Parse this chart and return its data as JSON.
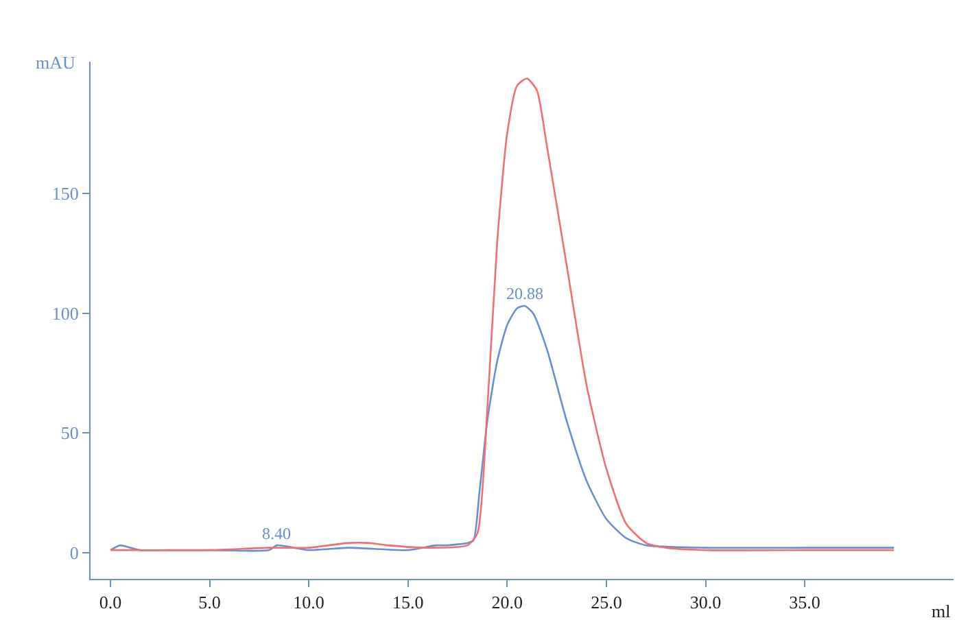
{
  "chart_data": {
    "type": "line",
    "xlabel": "ml",
    "ylabel": "mAU",
    "series": [
      {
        "color": "#6a8fd0",
        "x": [
          0,
          0.5,
          1,
          1.5,
          3,
          5,
          8,
          8.4,
          10,
          12,
          15,
          16.4,
          17,
          18,
          18.3,
          18.6,
          19,
          19.5,
          20,
          20.5,
          20.88,
          21.3,
          22,
          23,
          24,
          25,
          26,
          27,
          30,
          35,
          39.5
        ],
        "values": [
          1,
          3,
          2,
          1,
          1,
          1,
          1,
          3,
          1,
          2,
          1,
          3,
          3,
          4,
          5,
          25,
          55,
          80,
          95,
          102,
          103,
          100,
          85,
          55,
          30,
          14,
          6,
          3,
          2,
          2,
          2
        ]
      },
      {
        "color": "#f07070",
        "x": [
          0,
          1,
          5,
          8,
          10,
          12,
          13,
          14,
          16,
          18,
          18.5,
          19,
          19.5,
          20,
          20.5,
          21,
          21.5,
          22,
          23,
          24,
          25,
          26,
          27,
          28,
          30,
          35,
          39.5
        ],
        "values": [
          1,
          1,
          1,
          2,
          2,
          4,
          4,
          3,
          2,
          3,
          8,
          60,
          130,
          175,
          195,
          198,
          193,
          170,
          120,
          70,
          35,
          12,
          4,
          2,
          1,
          1,
          1
        ]
      }
    ],
    "annotations": [
      {
        "text": "20.88",
        "x": 20.88,
        "y": 103
      },
      {
        "text": "8.40",
        "x": 8.4,
        "y": 3
      }
    ],
    "xlim": [
      -1,
      42.5
    ],
    "ylim": [
      -11,
      205
    ],
    "xticks": [
      {
        "value": 0,
        "label": "0.0"
      },
      {
        "value": 5,
        "label": "5.0"
      },
      {
        "value": 10,
        "label": "10.0"
      },
      {
        "value": 15,
        "label": "15.0"
      },
      {
        "value": 20,
        "label": "20.0"
      },
      {
        "value": 25,
        "label": "25.0"
      },
      {
        "value": 30,
        "label": "30.0"
      },
      {
        "value": 35,
        "label": "35.0"
      }
    ],
    "yticks": [
      0,
      50,
      100,
      150
    ],
    "grid": false,
    "marker": "none",
    "line_style": "solid"
  }
}
